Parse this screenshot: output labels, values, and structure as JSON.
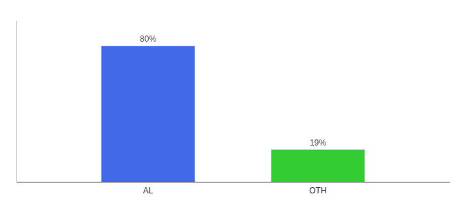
{
  "chart_data": {
    "type": "bar",
    "categories": [
      "AL",
      "OTH"
    ],
    "values": [
      80,
      19
    ],
    "value_labels": [
      "80%",
      "19%"
    ],
    "colors": [
      "#4169e8",
      "#33cc33"
    ],
    "ylim": [
      0,
      95
    ],
    "data_labels": true,
    "tick_labels": "x",
    "grid": false
  }
}
